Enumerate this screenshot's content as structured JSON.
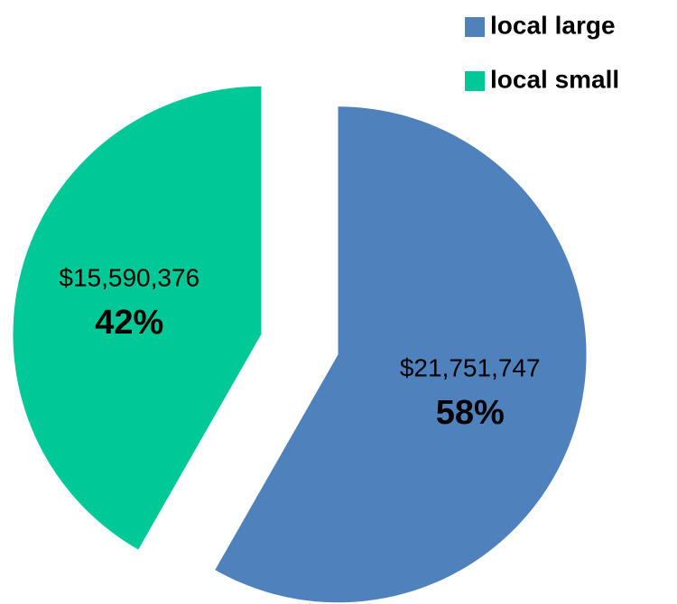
{
  "chart_data": {
    "type": "pie",
    "categories": [
      "local large",
      "local small"
    ],
    "values": [
      21751747,
      15590376
    ],
    "value_labels": [
      "$21,751,747",
      "$15,590,376"
    ],
    "percent_labels": [
      "58%",
      "42%"
    ],
    "colors": [
      "#4f81bd",
      "#00c896"
    ],
    "exploded": true,
    "legend": "top-right"
  }
}
